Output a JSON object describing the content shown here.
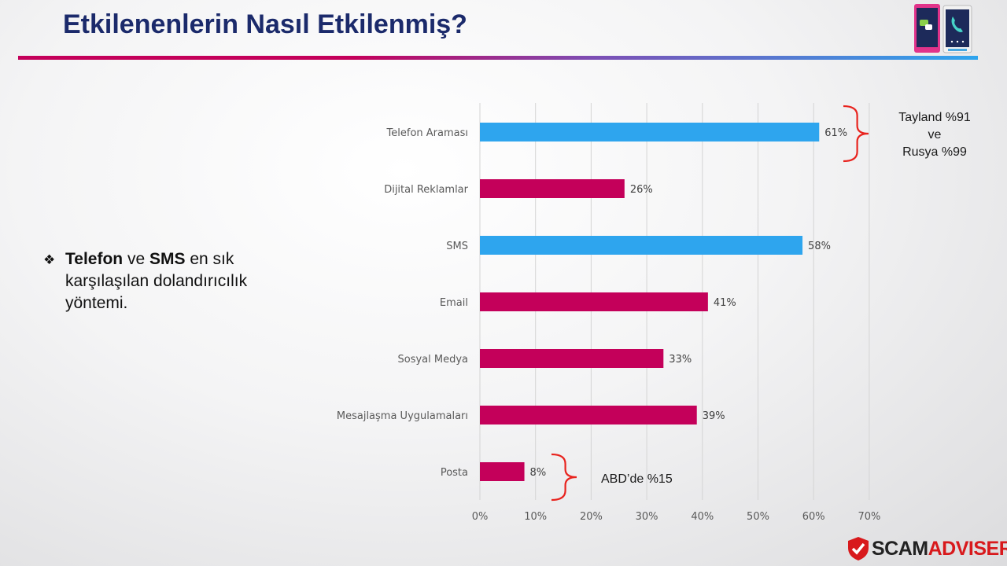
{
  "slide": {
    "title": "Etkilenenlerin Nasıl Etkilenmiş?",
    "bullet": {
      "bold1": "Telefon",
      "text1": " ve ",
      "bold2": "SMS",
      "text2": " en sık karşılaşılan dolandırıcılık yöntemi."
    },
    "logo": {
      "part1": "SCAM",
      "part2": "ADVISER"
    }
  },
  "chart_data": {
    "type": "bar",
    "orientation": "horizontal",
    "categories": [
      "Telefon Araması",
      "Dijital Reklamlar",
      "SMS",
      "Email",
      "Sosyal Medya",
      "Mesajlaşma Uygulamaları",
      "Posta"
    ],
    "values": [
      61,
      26,
      58,
      41,
      33,
      39,
      8
    ],
    "value_labels": [
      "61%",
      "26%",
      "58%",
      "41%",
      "33%",
      "39%",
      "8%"
    ],
    "bar_colors": [
      "#2ea5ee",
      "#c4005a",
      "#2ea5ee",
      "#c4005a",
      "#c4005a",
      "#c4005a",
      "#c4005a"
    ],
    "xlim": [
      0,
      70
    ],
    "xticks": [
      0,
      10,
      20,
      30,
      40,
      50,
      60,
      70
    ],
    "xtick_labels": [
      "0%",
      "10%",
      "20%",
      "30%",
      "40%",
      "50%",
      "60%",
      "70%"
    ],
    "grid": "vertical",
    "annotations": [
      {
        "category": "Telefon Araması",
        "lines": [
          "Tayland %91",
          "ve",
          "Rusya %99"
        ]
      },
      {
        "category": "Posta",
        "lines": [
          "ABD’de %15"
        ]
      }
    ],
    "brace_color": "#e8231e"
  }
}
